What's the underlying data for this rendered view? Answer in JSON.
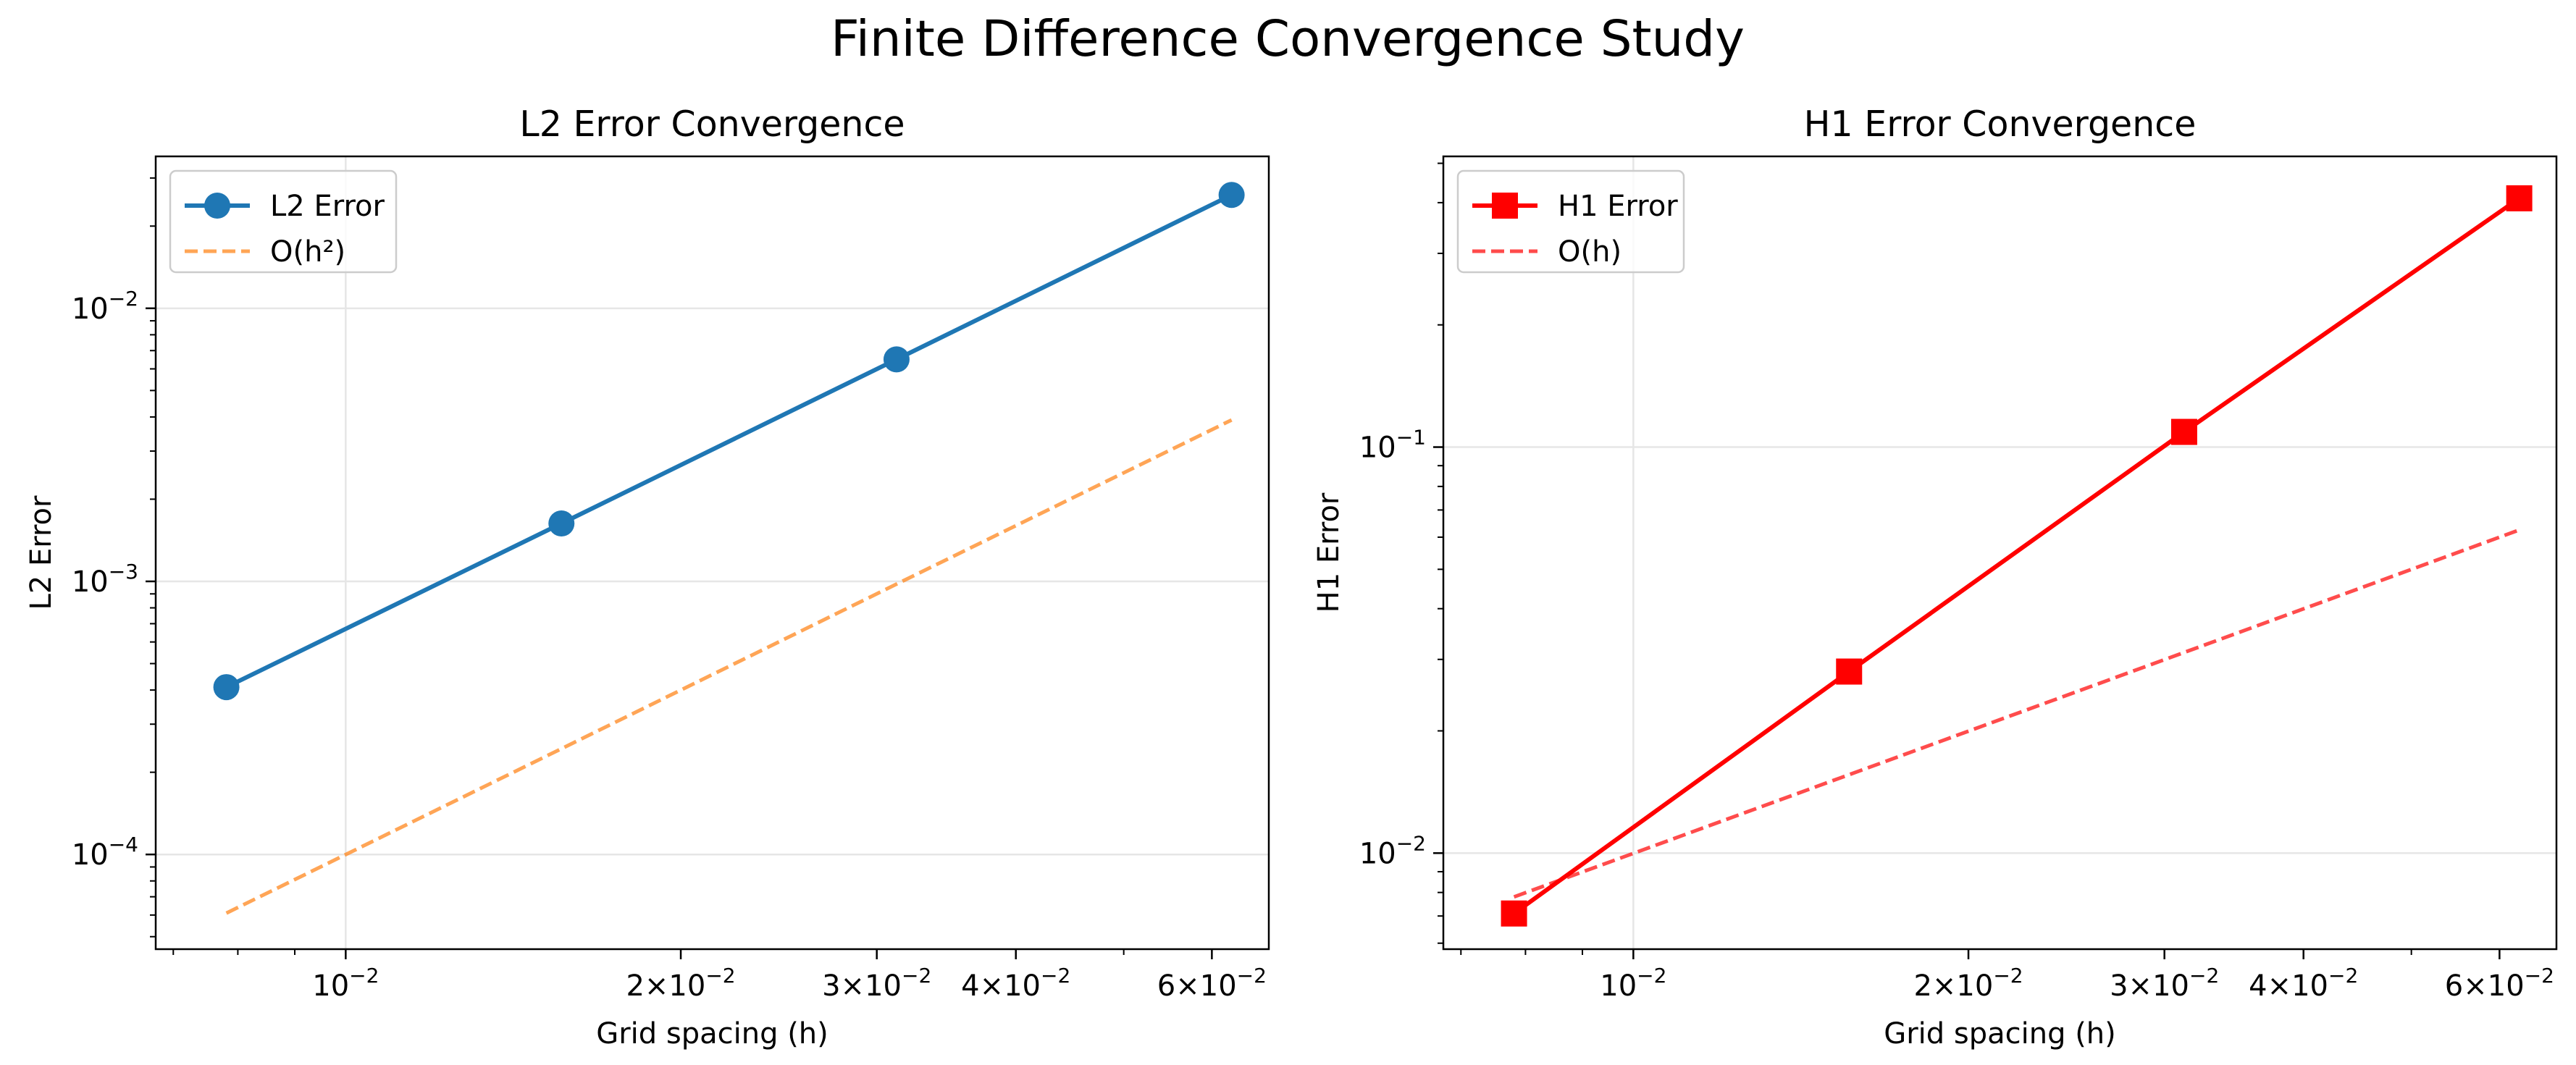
{
  "figure": {
    "title": "Finite Difference Convergence Study"
  },
  "chart_data": [
    {
      "type": "line",
      "title": "L2 Error Convergence",
      "xlabel": "Grid spacing (h)",
      "ylabel": "L2 Error",
      "xscale": "log",
      "yscale": "log",
      "xlim": [
        0.00675,
        0.0675
      ],
      "ylim": [
        4.5e-05,
        0.036
      ],
      "grid": true,
      "legend_position": "upper left",
      "x": [
        0.0078125,
        0.015625,
        0.03125,
        0.0625
      ],
      "x_ticks": [
        {
          "value": 0.01,
          "base": "10",
          "exp": "−2"
        },
        {
          "value": 0.02,
          "base": "2×10",
          "exp": "−2"
        },
        {
          "value": 0.03,
          "base": "3×10",
          "exp": "−2"
        },
        {
          "value": 0.04,
          "base": "4×10",
          "exp": "−2"
        },
        {
          "value": 0.06,
          "base": "6×10",
          "exp": "−2"
        }
      ],
      "y_ticks": [
        {
          "value": 0.0001,
          "base": "10",
          "exp": "−4"
        },
        {
          "value": 0.001,
          "base": "10",
          "exp": "−3"
        },
        {
          "value": 0.01,
          "base": "10",
          "exp": "−2"
        }
      ],
      "series": [
        {
          "name": "L2 Error",
          "values": [
            0.00041,
            0.00163,
            0.0065,
            0.026
          ],
          "color": "#1f77b4",
          "style": "solid",
          "marker": "circle"
        },
        {
          "name": "O(h²)",
          "values": [
            6.1e-05,
            0.000244,
            0.000977,
            0.0039
          ],
          "color": "#ff7f0e",
          "style": "dashed",
          "marker": "none",
          "alpha": 0.7
        }
      ]
    },
    {
      "type": "line",
      "title": "H1 Error Convergence",
      "xlabel": "Grid spacing (h)",
      "ylabel": "H1 Error",
      "xscale": "log",
      "yscale": "log",
      "xlim": [
        0.00675,
        0.0675
      ],
      "ylim": [
        0.0058,
        0.52
      ],
      "grid": true,
      "legend_position": "upper left",
      "x": [
        0.0078125,
        0.015625,
        0.03125,
        0.0625
      ],
      "x_ticks": [
        {
          "value": 0.01,
          "base": "10",
          "exp": "−2"
        },
        {
          "value": 0.02,
          "base": "2×10",
          "exp": "−2"
        },
        {
          "value": 0.03,
          "base": "3×10",
          "exp": "−2"
        },
        {
          "value": 0.04,
          "base": "4×10",
          "exp": "−2"
        },
        {
          "value": 0.06,
          "base": "6×10",
          "exp": "−2"
        }
      ],
      "y_ticks": [
        {
          "value": 0.01,
          "base": "10",
          "exp": "−2"
        },
        {
          "value": 0.1,
          "base": "10",
          "exp": "−1"
        }
      ],
      "series": [
        {
          "name": "H1 Error",
          "values": [
            0.0071,
            0.028,
            0.109,
            0.41
          ],
          "color": "#ff0000",
          "style": "solid",
          "marker": "square"
        },
        {
          "name": "O(h)",
          "values": [
            0.0078,
            0.0156,
            0.0312,
            0.0625
          ],
          "color": "#ff0000",
          "style": "dashed",
          "marker": "none",
          "alpha": 0.7
        }
      ]
    }
  ]
}
